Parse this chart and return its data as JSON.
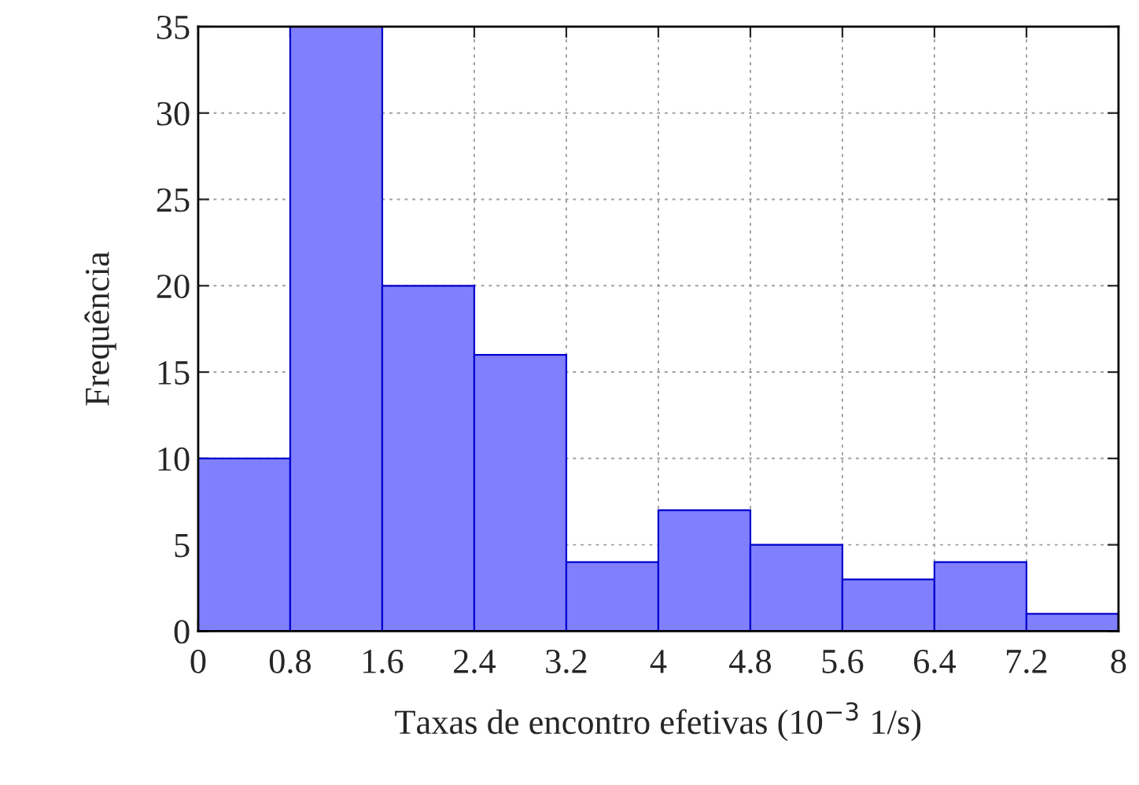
{
  "chart_data": {
    "type": "histogram",
    "xlabel": "Taxas de encontro efetivas (10$^{−3}$ 1/s)",
    "ylabel": "Frequência",
    "bins": [
      0,
      0.8,
      1.6,
      2.4,
      3.2,
      4,
      4.8,
      5.6,
      6.4,
      7.2,
      8
    ],
    "values": [
      10,
      35,
      20,
      16,
      4,
      7,
      5,
      3,
      4,
      1
    ],
    "color": "#8080ff",
    "xlim": [
      0,
      8
    ],
    "xticks": [
      0,
      0.8,
      1.6,
      2.4,
      3.2,
      4,
      4.8,
      5.6,
      6.4,
      7.2,
      8
    ],
    "ylim": [
      0,
      35
    ],
    "yticks": [
      0,
      5,
      10,
      15,
      20,
      25,
      30,
      35
    ],
    "grid": true
  }
}
